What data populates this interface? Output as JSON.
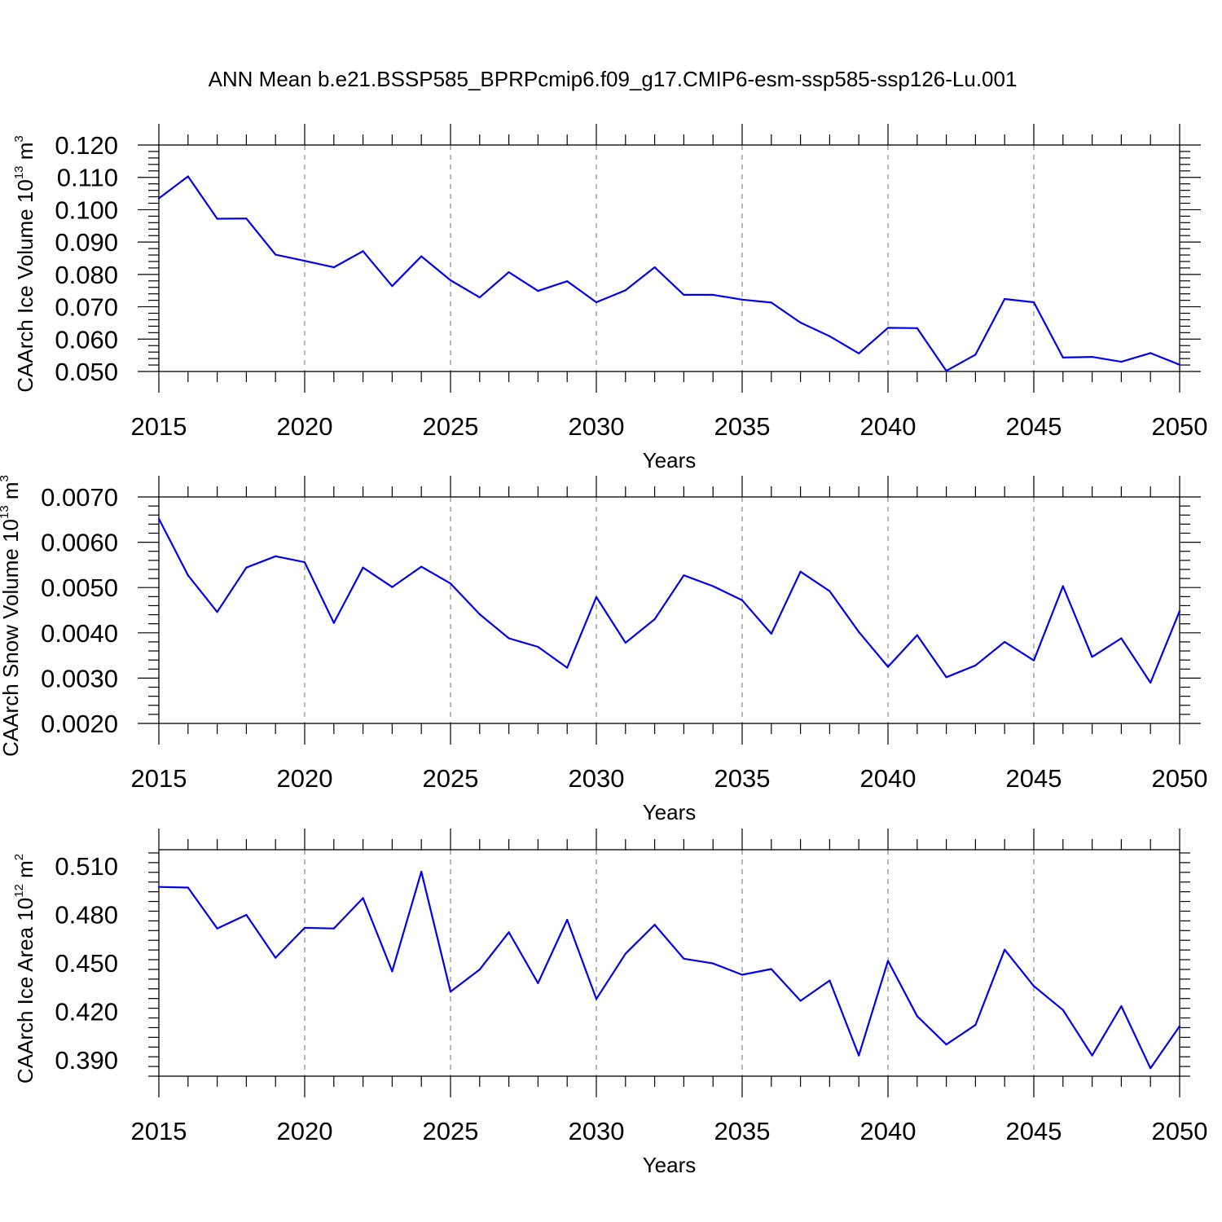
{
  "figure": {
    "title": "ANN Mean b.e21.BSSP585_BPRPcmip6.f09_g17.CMIP6-esm-ssp585-ssp126-Lu.001",
    "line_color": "#0000ee",
    "grid_color": "#888888"
  },
  "chart_data": [
    {
      "type": "line",
      "title": "ANN Mean b.e21.BSSP585_BPRPcmip6.f09_g17.CMIP6-esm-ssp585-ssp126-Lu.001",
      "xlabel": "Years",
      "ylabel_prefix": "CAArch Ice Volume 10",
      "ylabel_exp": "13",
      "ylabel_suffix": " m",
      "ylabel_unit_exp": "3",
      "xlim": [
        2015,
        2050
      ],
      "ylim": [
        0.05,
        0.12
      ],
      "xticks": [
        2015,
        2020,
        2025,
        2030,
        2035,
        2040,
        2045,
        2050
      ],
      "xtick_labels": [
        "2015",
        "2020",
        "2025",
        "2030",
        "2035",
        "2040",
        "2045",
        "2050"
      ],
      "yticks": [
        0.05,
        0.06,
        0.07,
        0.08,
        0.09,
        0.1,
        0.11,
        0.12
      ],
      "ytick_labels": [
        "0.050",
        "0.060",
        "0.070",
        "0.080",
        "0.090",
        "0.100",
        "0.110",
        "0.120"
      ],
      "grid": "vertical dashed at major x ticks",
      "x": [
        2015,
        2016,
        2017,
        2018,
        2019,
        2020,
        2021,
        2022,
        2023,
        2024,
        2025,
        2026,
        2027,
        2028,
        2029,
        2030,
        2031,
        2032,
        2033,
        2034,
        2035,
        2036,
        2037,
        2038,
        2039,
        2040,
        2041,
        2042,
        2043,
        2044,
        2045,
        2046,
        2047,
        2048,
        2049,
        2050
      ],
      "y": [
        0.1035,
        0.1103,
        0.0972,
        0.0973,
        0.0861,
        0.0842,
        0.0822,
        0.0872,
        0.0764,
        0.0856,
        0.0782,
        0.0729,
        0.0807,
        0.0749,
        0.0779,
        0.0714,
        0.0751,
        0.0822,
        0.0737,
        0.0737,
        0.0722,
        0.0713,
        0.0651,
        0.0609,
        0.0556,
        0.0635,
        0.0634,
        0.0502,
        0.0552,
        0.0724,
        0.0714,
        0.0543,
        0.0545,
        0.053,
        0.0557,
        0.0521
      ]
    },
    {
      "type": "line",
      "xlabel": "Years",
      "ylabel_prefix": "CAArch Snow Volume 10",
      "ylabel_exp": "13",
      "ylabel_suffix": " m",
      "ylabel_unit_exp": "3",
      "xlim": [
        2015,
        2050
      ],
      "ylim": [
        0.002,
        0.007
      ],
      "xticks": [
        2015,
        2020,
        2025,
        2030,
        2035,
        2040,
        2045,
        2050
      ],
      "xtick_labels": [
        "2015",
        "2020",
        "2025",
        "2030",
        "2035",
        "2040",
        "2045",
        "2050"
      ],
      "yticks": [
        0.002,
        0.003,
        0.004,
        0.005,
        0.006,
        0.007
      ],
      "ytick_labels": [
        "0.0020",
        "0.0030",
        "0.0040",
        "0.0050",
        "0.0060",
        "0.0070"
      ],
      "grid": "vertical dashed at major x ticks",
      "x": [
        2015,
        2016,
        2017,
        2018,
        2019,
        2020,
        2021,
        2022,
        2023,
        2024,
        2025,
        2026,
        2027,
        2028,
        2029,
        2030,
        2031,
        2032,
        2033,
        2034,
        2035,
        2036,
        2037,
        2038,
        2039,
        2040,
        2041,
        2042,
        2043,
        2044,
        2045,
        2046,
        2047,
        2048,
        2049,
        2050
      ],
      "y": [
        0.00652,
        0.00527,
        0.00446,
        0.00544,
        0.00569,
        0.00556,
        0.00422,
        0.00544,
        0.00501,
        0.00546,
        0.00509,
        0.00441,
        0.00388,
        0.00369,
        0.00323,
        0.00479,
        0.00378,
        0.0043,
        0.00527,
        0.00503,
        0.00472,
        0.00398,
        0.00535,
        0.00492,
        0.00402,
        0.00325,
        0.00395,
        0.00302,
        0.00328,
        0.0038,
        0.00339,
        0.00503,
        0.00347,
        0.00388,
        0.0029,
        0.00448
      ]
    },
    {
      "type": "line",
      "xlabel": "Years",
      "ylabel_prefix": "CAArch Ice Area 10",
      "ylabel_exp": "12",
      "ylabel_suffix": " m",
      "ylabel_unit_exp": "2",
      "xlim": [
        2015,
        2050
      ],
      "ylim": [
        0.38,
        0.52
      ],
      "xticks": [
        2015,
        2020,
        2025,
        2030,
        2035,
        2040,
        2045,
        2050
      ],
      "xtick_labels": [
        "2015",
        "2020",
        "2025",
        "2030",
        "2035",
        "2040",
        "2045",
        "2050"
      ],
      "yticks": [
        0.39,
        0.42,
        0.45,
        0.48,
        0.51
      ],
      "ytick_labels": [
        "0.390",
        "0.420",
        "0.450",
        "0.480",
        "0.510"
      ],
      "grid": "vertical dashed at major x ticks",
      "x": [
        2015,
        2016,
        2017,
        2018,
        2019,
        2020,
        2021,
        2022,
        2023,
        2024,
        2025,
        2026,
        2027,
        2028,
        2029,
        2030,
        2031,
        2032,
        2033,
        2034,
        2035,
        2036,
        2037,
        2038,
        2039,
        2040,
        2041,
        2042,
        2043,
        2044,
        2045,
        2046,
        2047,
        2048,
        2049,
        2050
      ],
      "y": [
        0.497,
        0.4966,
        0.4713,
        0.4797,
        0.4532,
        0.4717,
        0.4713,
        0.4901,
        0.4448,
        0.5064,
        0.4322,
        0.4459,
        0.469,
        0.4375,
        0.4767,
        0.4277,
        0.4557,
        0.4736,
        0.4526,
        0.4497,
        0.4427,
        0.4462,
        0.4266,
        0.4391,
        0.3928,
        0.4513,
        0.4171,
        0.3996,
        0.4117,
        0.4582,
        0.4357,
        0.4209,
        0.3928,
        0.4233,
        0.3849,
        0.4109
      ]
    }
  ]
}
